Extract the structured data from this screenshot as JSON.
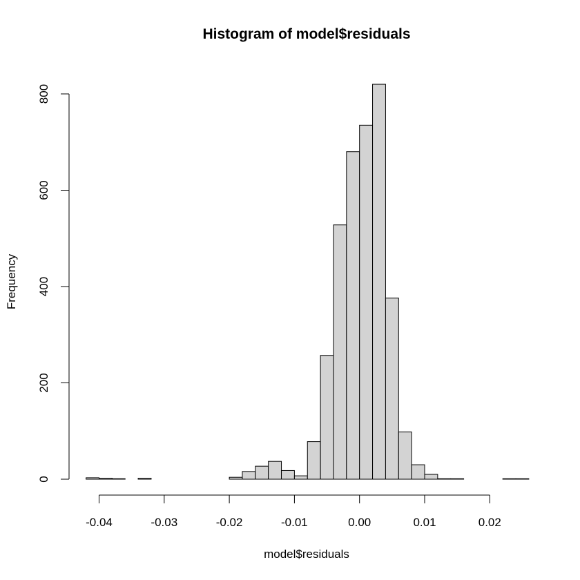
{
  "chart_data": {
    "type": "bar",
    "title": "Histogram of model$residuals",
    "xlabel": "model$residuals",
    "ylabel": "Frequency",
    "bin_width": 0.002,
    "bin_start": -0.042,
    "xlim": [
      -0.042,
      0.026
    ],
    "ylim": [
      0,
      800
    ],
    "x_ticks": [
      -0.04,
      -0.03,
      -0.02,
      -0.01,
      0.0,
      0.01,
      0.02
    ],
    "x_tick_labels": [
      "-0.04",
      "-0.03",
      "-0.02",
      "-0.01",
      "0.00",
      "0.01",
      "0.02"
    ],
    "y_ticks": [
      0,
      200,
      400,
      600,
      800
    ],
    "y_tick_labels": [
      "0",
      "200",
      "400",
      "600",
      "800"
    ],
    "values": [
      3,
      2,
      1,
      0,
      2,
      0,
      0,
      0,
      0,
      0,
      0,
      4,
      16,
      27,
      37,
      18,
      7,
      78,
      257,
      528,
      680,
      735,
      820,
      376,
      98,
      30,
      10,
      1,
      1,
      0,
      0,
      0,
      1,
      1
    ],
    "grid": false,
    "bar_fill": "#d3d3d3",
    "bar_stroke": "#000000"
  }
}
